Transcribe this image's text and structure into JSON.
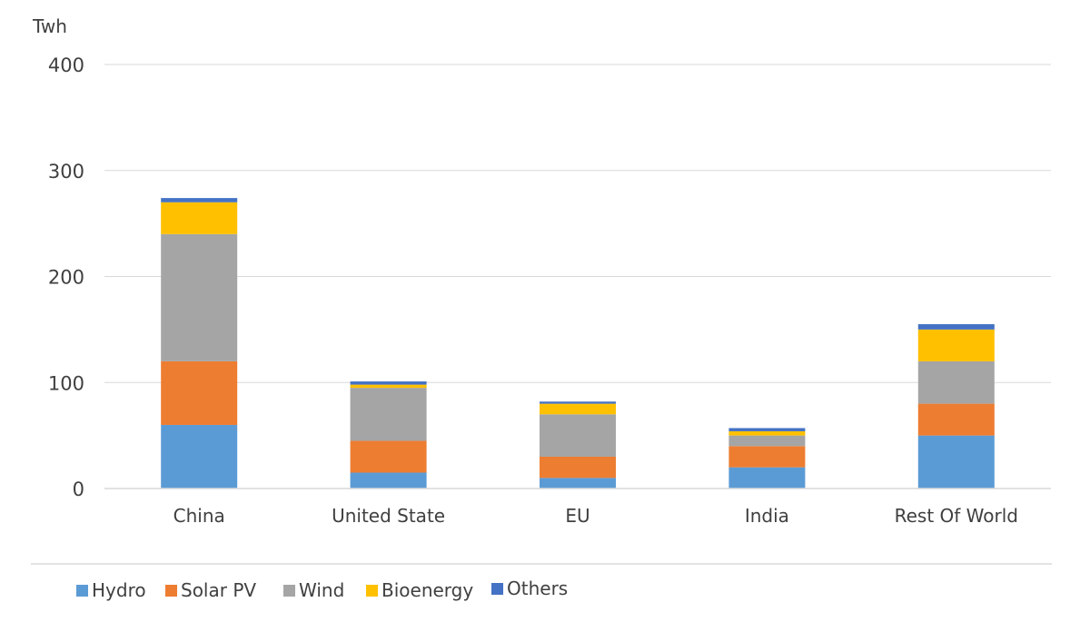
{
  "chart_data": {
    "type": "bar",
    "stacked": true,
    "ylabel": "Twh",
    "xlabel": "",
    "ylim": [
      0,
      400
    ],
    "yticks": [
      0,
      100,
      200,
      300,
      400
    ],
    "grid": true,
    "legend_position": "bottom-left",
    "categories": [
      "China",
      "United State",
      "EU",
      "India",
      "Rest Of World"
    ],
    "series": [
      {
        "name": "Hydro",
        "color": "#5B9BD5",
        "values": [
          60,
          15,
          10,
          20,
          50
        ]
      },
      {
        "name": "Solar PV",
        "color": "#ED7D31",
        "values": [
          60,
          30,
          20,
          20,
          30
        ]
      },
      {
        "name": "Wind",
        "color": "#A5A5A5",
        "values": [
          120,
          50,
          40,
          10,
          40
        ]
      },
      {
        "name": "Bioenergy",
        "color": "#FFC000",
        "values": [
          30,
          3,
          10,
          4,
          30
        ]
      },
      {
        "name": "Others",
        "color": "#4472C4",
        "values": [
          4,
          3,
          2,
          3,
          5
        ]
      }
    ]
  }
}
